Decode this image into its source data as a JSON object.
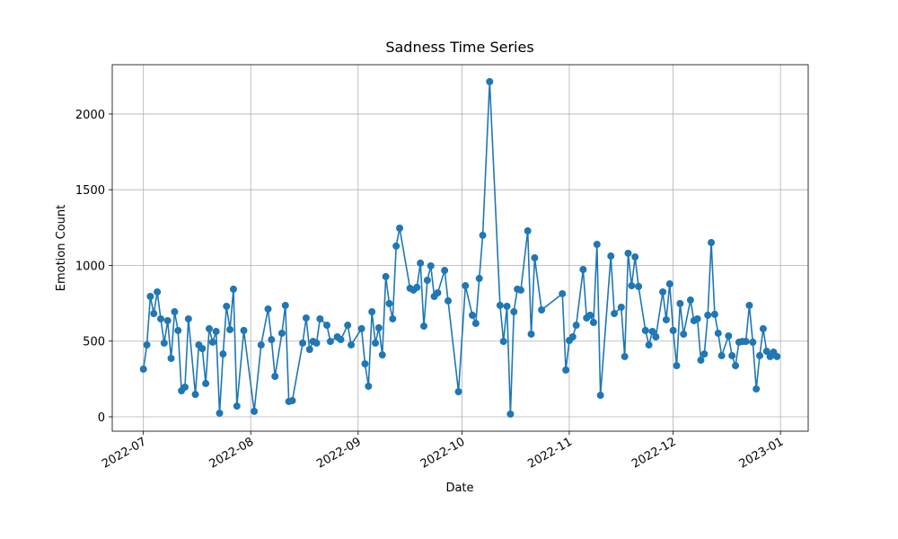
{
  "chart_data": {
    "type": "line",
    "title": "Sadness Time Series",
    "xlabel": "Date",
    "ylabel": "Emotion Count",
    "color": "#1f77b4",
    "grid": true,
    "xlim": [
      "2022-06-22",
      "2023-01-09"
    ],
    "ylim": [
      -95,
      2326
    ],
    "xticks": [
      {
        "value": "2022-07-01",
        "label": "2022-07"
      },
      {
        "value": "2022-08-01",
        "label": "2022-08"
      },
      {
        "value": "2022-09-01",
        "label": "2022-09"
      },
      {
        "value": "2022-10-01",
        "label": "2022-10"
      },
      {
        "value": "2022-11-01",
        "label": "2022-11"
      },
      {
        "value": "2022-12-01",
        "label": "2022-12"
      },
      {
        "value": "2023-01-01",
        "label": "2023-01"
      }
    ],
    "yticks": [
      0,
      500,
      1000,
      1500,
      2000
    ],
    "x": [
      "2022-07-01",
      "2022-07-02",
      "2022-07-03",
      "2022-07-04",
      "2022-07-05",
      "2022-07-06",
      "2022-07-07",
      "2022-07-08",
      "2022-07-09",
      "2022-07-10",
      "2022-07-11",
      "2022-07-12",
      "2022-07-13",
      "2022-07-14",
      "2022-07-16",
      "2022-07-17",
      "2022-07-18",
      "2022-07-19",
      "2022-07-20",
      "2022-07-21",
      "2022-07-22",
      "2022-07-23",
      "2022-07-24",
      "2022-07-25",
      "2022-07-26",
      "2022-07-27",
      "2022-07-28",
      "2022-07-30",
      "2022-08-02",
      "2022-08-04",
      "2022-08-06",
      "2022-08-07",
      "2022-08-08",
      "2022-08-10",
      "2022-08-11",
      "2022-08-12",
      "2022-08-13",
      "2022-08-16",
      "2022-08-17",
      "2022-08-18",
      "2022-08-19",
      "2022-08-20",
      "2022-08-21",
      "2022-08-23",
      "2022-08-24",
      "2022-08-26",
      "2022-08-27",
      "2022-08-29",
      "2022-08-30",
      "2022-09-02",
      "2022-09-03",
      "2022-09-04",
      "2022-09-05",
      "2022-09-06",
      "2022-09-07",
      "2022-09-08",
      "2022-09-09",
      "2022-09-10",
      "2022-09-11",
      "2022-09-12",
      "2022-09-13",
      "2022-09-16",
      "2022-09-17",
      "2022-09-18",
      "2022-09-19",
      "2022-09-20",
      "2022-09-21",
      "2022-09-22",
      "2022-09-23",
      "2022-09-24",
      "2022-09-26",
      "2022-09-27",
      "2022-09-30",
      "2022-10-02",
      "2022-10-04",
      "2022-10-05",
      "2022-10-06",
      "2022-10-07",
      "2022-10-09",
      "2022-10-12",
      "2022-10-13",
      "2022-10-14",
      "2022-10-15",
      "2022-10-16",
      "2022-10-17",
      "2022-10-18",
      "2022-10-20",
      "2022-10-21",
      "2022-10-22",
      "2022-10-24",
      "2022-10-30",
      "2022-10-31",
      "2022-11-01",
      "2022-11-02",
      "2022-11-03",
      "2022-11-05",
      "2022-11-06",
      "2022-11-07",
      "2022-11-08",
      "2022-11-09",
      "2022-11-10",
      "2022-11-13",
      "2022-11-14",
      "2022-11-16",
      "2022-11-17",
      "2022-11-18",
      "2022-11-19",
      "2022-11-20",
      "2022-11-21",
      "2022-11-23",
      "2022-11-24",
      "2022-11-25",
      "2022-11-26",
      "2022-11-28",
      "2022-11-29",
      "2022-11-30",
      "2022-12-01",
      "2022-12-02",
      "2022-12-03",
      "2022-12-04",
      "2022-12-06",
      "2022-12-07",
      "2022-12-08",
      "2022-12-09",
      "2022-12-10",
      "2022-12-11",
      "2022-12-12",
      "2022-12-13",
      "2022-12-14",
      "2022-12-15",
      "2022-12-17",
      "2022-12-18",
      "2022-12-19",
      "2022-12-20",
      "2022-12-21",
      "2022-12-22",
      "2022-12-23",
      "2022-12-24",
      "2022-12-25",
      "2022-12-26",
      "2022-12-27",
      "2022-12-28",
      "2022-12-29",
      "2022-12-30",
      "2022-12-31"
    ],
    "values": [
      315,
      475,
      795,
      682,
      825,
      647,
      487,
      635,
      386,
      694,
      570,
      172,
      196,
      647,
      148,
      475,
      451,
      220,
      582,
      493,
      564,
      24,
      415,
      730,
      576,
      843,
      71,
      570,
      36,
      475,
      712,
      510,
      267,
      552,
      736,
      101,
      107,
      487,
      653,
      445,
      498,
      487,
      647,
      605,
      498,
      528,
      510,
      605,
      475,
      582,
      350,
      202,
      694,
      487,
      588,
      409,
      926,
      748,
      647,
      1128,
      1246,
      849,
      837,
      855,
      1015,
      599,
      902,
      997,
      795,
      819,
      967,
      766,
      166,
      866,
      671,
      617,
      914,
      1199,
      2214,
      736,
      498,
      730,
      18,
      694,
      843,
      837,
      1228,
      546,
      1050,
      706,
      813,
      309,
      504,
      528,
      605,
      973,
      653,
      671,
      623,
      1139,
      142,
      1062,
      682,
      724,
      398,
      1080,
      866,
      1056,
      861,
      570,
      475,
      564,
      528,
      825,
      641,
      878,
      570,
      338,
      748,
      546,
      771,
      635,
      647,
      374,
      415,
      671,
      1151,
      677,
      552,
      404,
      534,
      404,
      338,
      493,
      498,
      498,
      736,
      493,
      184,
      404,
      582,
      433,
      398,
      427,
      398
    ]
  }
}
